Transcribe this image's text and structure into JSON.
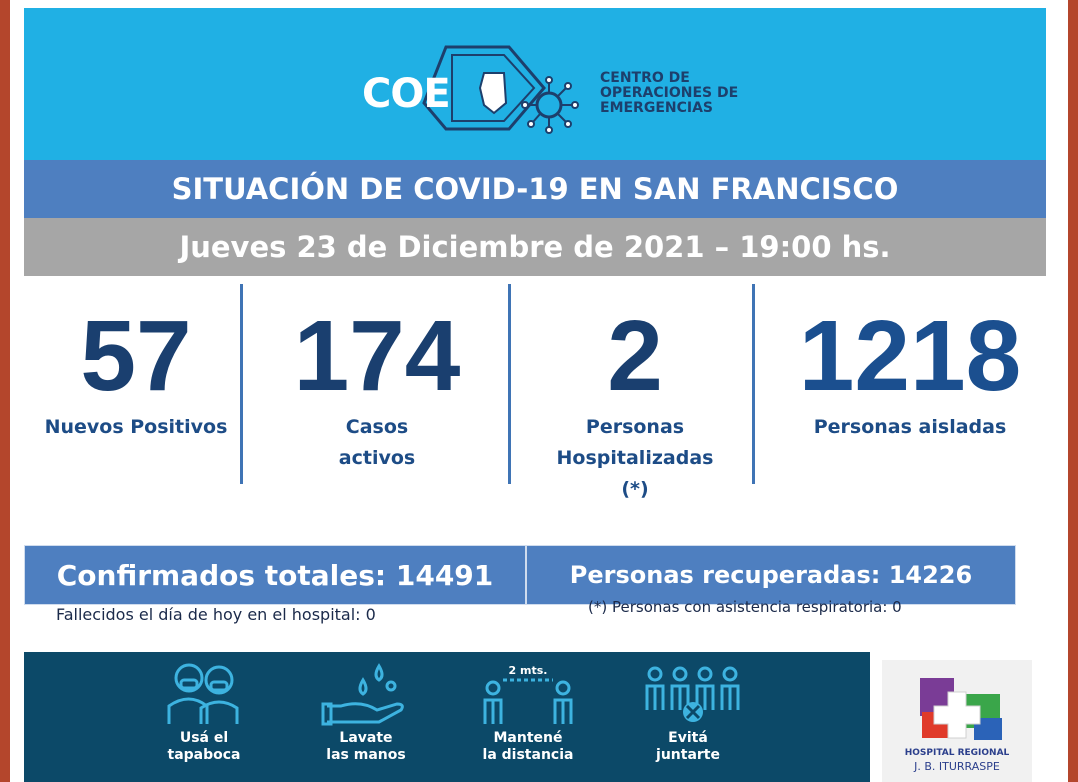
{
  "header": {
    "logo_acronym": "COE",
    "logo_lines": [
      "CENTRO DE",
      "OPERACIONES DE",
      "EMERGENCIAS"
    ],
    "color": "#20b0e4"
  },
  "title": "SITUACIÓN DE COVID-19 EN SAN FRANCISCO",
  "date": "Jueves 23 de Diciembre de 2021 – 19:00 hs.",
  "stats": [
    {
      "value": "57",
      "label_lines": [
        "Nuevos Positivos"
      ]
    },
    {
      "value": "174",
      "label_lines": [
        "Casos",
        "activos"
      ]
    },
    {
      "value": "2",
      "label_lines": [
        "Personas",
        "Hospitalizadas",
        "(*)"
      ]
    },
    {
      "value": "1218",
      "label_lines": [
        "Personas aisladas"
      ]
    }
  ],
  "totals": {
    "confirmed": "Confirmados totales: 14491",
    "recovered": "Personas recuperadas: 14226"
  },
  "notes": {
    "deaths": "Fallecidos el día de hoy en el hospital: 0",
    "respiratory": "(*) Personas con asistencia respiratoria: 0"
  },
  "tips": [
    {
      "icon": "masked-people-icon",
      "lines": [
        "Usá el",
        "tapaboca"
      ]
    },
    {
      "icon": "wash-hands-icon",
      "lines": [
        "Lavate",
        "las manos"
      ]
    },
    {
      "icon": "distance-icon",
      "lines": [
        "Mantené",
        "la distancia"
      ],
      "extra": "2 mts."
    },
    {
      "icon": "no-gathering-icon",
      "lines": [
        "Evitá",
        "juntarte"
      ]
    }
  ],
  "hospital": {
    "lines": [
      "HOSPITAL REGIONAL",
      "J. B. ITURRASPE"
    ]
  },
  "colors": {
    "stat_number": "#1a3f6f",
    "stat_label": "#1d4c86",
    "band": "#4e7fc0",
    "date_band": "#a6a6a6",
    "tips_bg": "#0c4968",
    "tips_icon": "#3db3e0"
  }
}
